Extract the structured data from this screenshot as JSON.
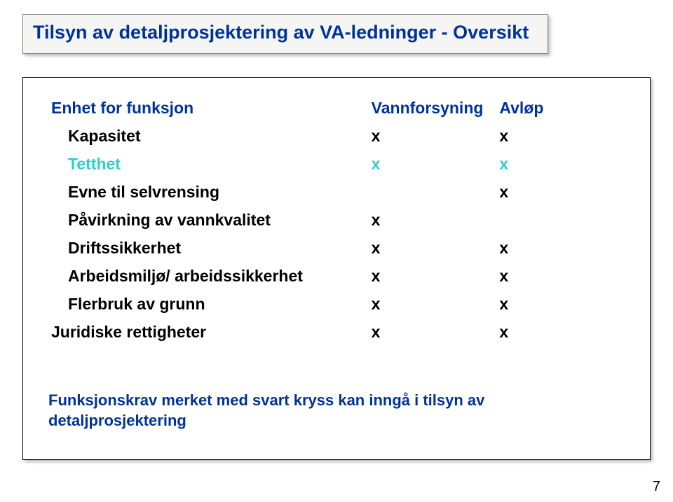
{
  "title": "Tilsyn av detaljprosjektering av VA-ledninger - Oversikt",
  "headers": {
    "label": "Enhet for funksjon",
    "vann": "Vannforsyning",
    "avlop": "Avløp"
  },
  "rows": [
    {
      "label": "Kapasitet",
      "indent": 1,
      "v": "x",
      "a": "x",
      "style": "black"
    },
    {
      "label": "Tetthet",
      "indent": 1,
      "v": "x",
      "a": "x",
      "style": "teal"
    },
    {
      "label": "Evne til selvrensing",
      "indent": 1,
      "v": "",
      "a": "x",
      "style": "black"
    },
    {
      "label": "Påvirkning av vannkvalitet",
      "indent": 1,
      "v": "x",
      "a": "",
      "style": "black"
    },
    {
      "label": "Driftssikkerhet",
      "indent": 1,
      "v": "x",
      "a": "x",
      "style": "black"
    },
    {
      "label": "Arbeidsmiljø/ arbeidssikkerhet",
      "indent": 1,
      "v": "x",
      "a": "x",
      "style": "black"
    },
    {
      "label": "Flerbruk av grunn",
      "indent": 1,
      "v": "x",
      "a": "x",
      "style": "black"
    },
    {
      "label": "Juridiske rettigheter",
      "indent": 0,
      "v": "x",
      "a": "x",
      "style": "black"
    }
  ],
  "footnote_line1": "Funksjonskrav merket med svart kryss kan inngå i tilsyn av",
  "footnote_line2": "detaljprosjektering",
  "page_number": "7",
  "colors": {
    "title_color": "#003399",
    "teal_color": "#33cccc",
    "black": "#000000",
    "title_bg": "#f5f5f4",
    "border_gray": "#808080"
  }
}
